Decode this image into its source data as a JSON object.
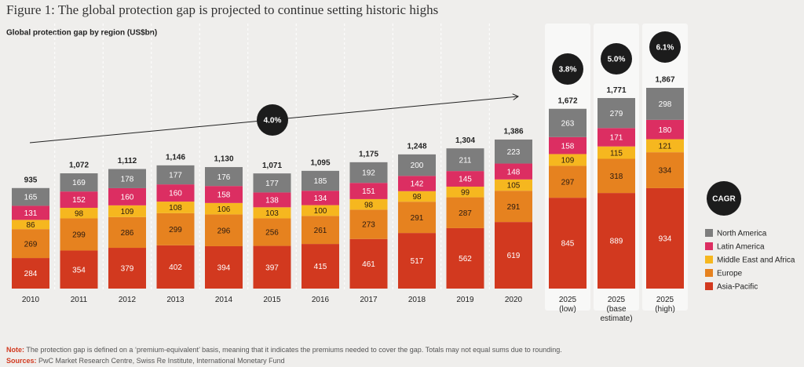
{
  "chart_data": {
    "type": "stacked_bar",
    "title": "Figure 1: The global protection gap is projected to continue setting historic highs",
    "subtitle": "Global protection gap by region (US$bn)",
    "categories": [
      [
        "2010"
      ],
      [
        "2011"
      ],
      [
        "2012"
      ],
      [
        "2013"
      ],
      [
        "2014"
      ],
      [
        "2015"
      ],
      [
        "2016"
      ],
      [
        "2017"
      ],
      [
        "2018"
      ],
      [
        "2019"
      ],
      [
        "2020"
      ],
      [
        "2025",
        "(low)"
      ],
      [
        "2025",
        "(base",
        "estimate)"
      ],
      [
        "2025",
        "(high)"
      ]
    ],
    "series": [
      {
        "name": "Asia-Pacific",
        "color": "#d2391f",
        "values": [
          284,
          354,
          379,
          402,
          394,
          397,
          415,
          461,
          517,
          562,
          619,
          845,
          889,
          934
        ]
      },
      {
        "name": "Europe",
        "color": "#e6821f",
        "values": [
          269,
          299,
          286,
          299,
          296,
          256,
          261,
          273,
          291,
          287,
          291,
          297,
          318,
          334
        ]
      },
      {
        "name": "Middle East and Africa",
        "color": "#f6b71f",
        "values": [
          86,
          98,
          109,
          108,
          106,
          103,
          100,
          98,
          98,
          99,
          105,
          109,
          115,
          121
        ]
      },
      {
        "name": "Latin America",
        "color": "#dc2e62",
        "values": [
          131,
          152,
          160,
          160,
          158,
          138,
          134,
          151,
          142,
          145,
          148,
          158,
          171,
          180
        ]
      },
      {
        "name": "North America",
        "color": "#7d7d7d",
        "values": [
          165,
          169,
          178,
          177,
          176,
          177,
          185,
          192,
          200,
          211,
          223,
          263,
          279,
          298
        ]
      }
    ],
    "totals": {
      "values": [
        935,
        1072,
        1112,
        1146,
        1130,
        1071,
        1095,
        1175,
        1248,
        1304,
        1386,
        1672,
        1771,
        1867
      ],
      "value_labels": [
        "935",
        "1,072",
        "1,112",
        "1,146",
        "1,130",
        "1,071",
        "1,095",
        "1,175",
        "1,248",
        "1,304",
        "1,386",
        "1,672",
        "1,771",
        "1,867"
      ]
    },
    "cagr": {
      "label": "CAGR",
      "values": [
        4.0,
        3.8,
        5.0,
        6.1
      ],
      "value_labels": [
        "4.0%",
        "3.8%",
        "5.0%",
        "6.1%"
      ]
    },
    "note": {
      "label": "Note:",
      "text": "The protection gap is defined on a ‘premium-equivalent’ basis, meaning that it indicates the premiums needed to cover the gap. Totals may not equal sums due to rounding."
    },
    "sources": {
      "label": "Sources:",
      "text": "PwC Market Research Centre, Swiss Re Institute, International Monetary Fund"
    },
    "legend": "right"
  }
}
